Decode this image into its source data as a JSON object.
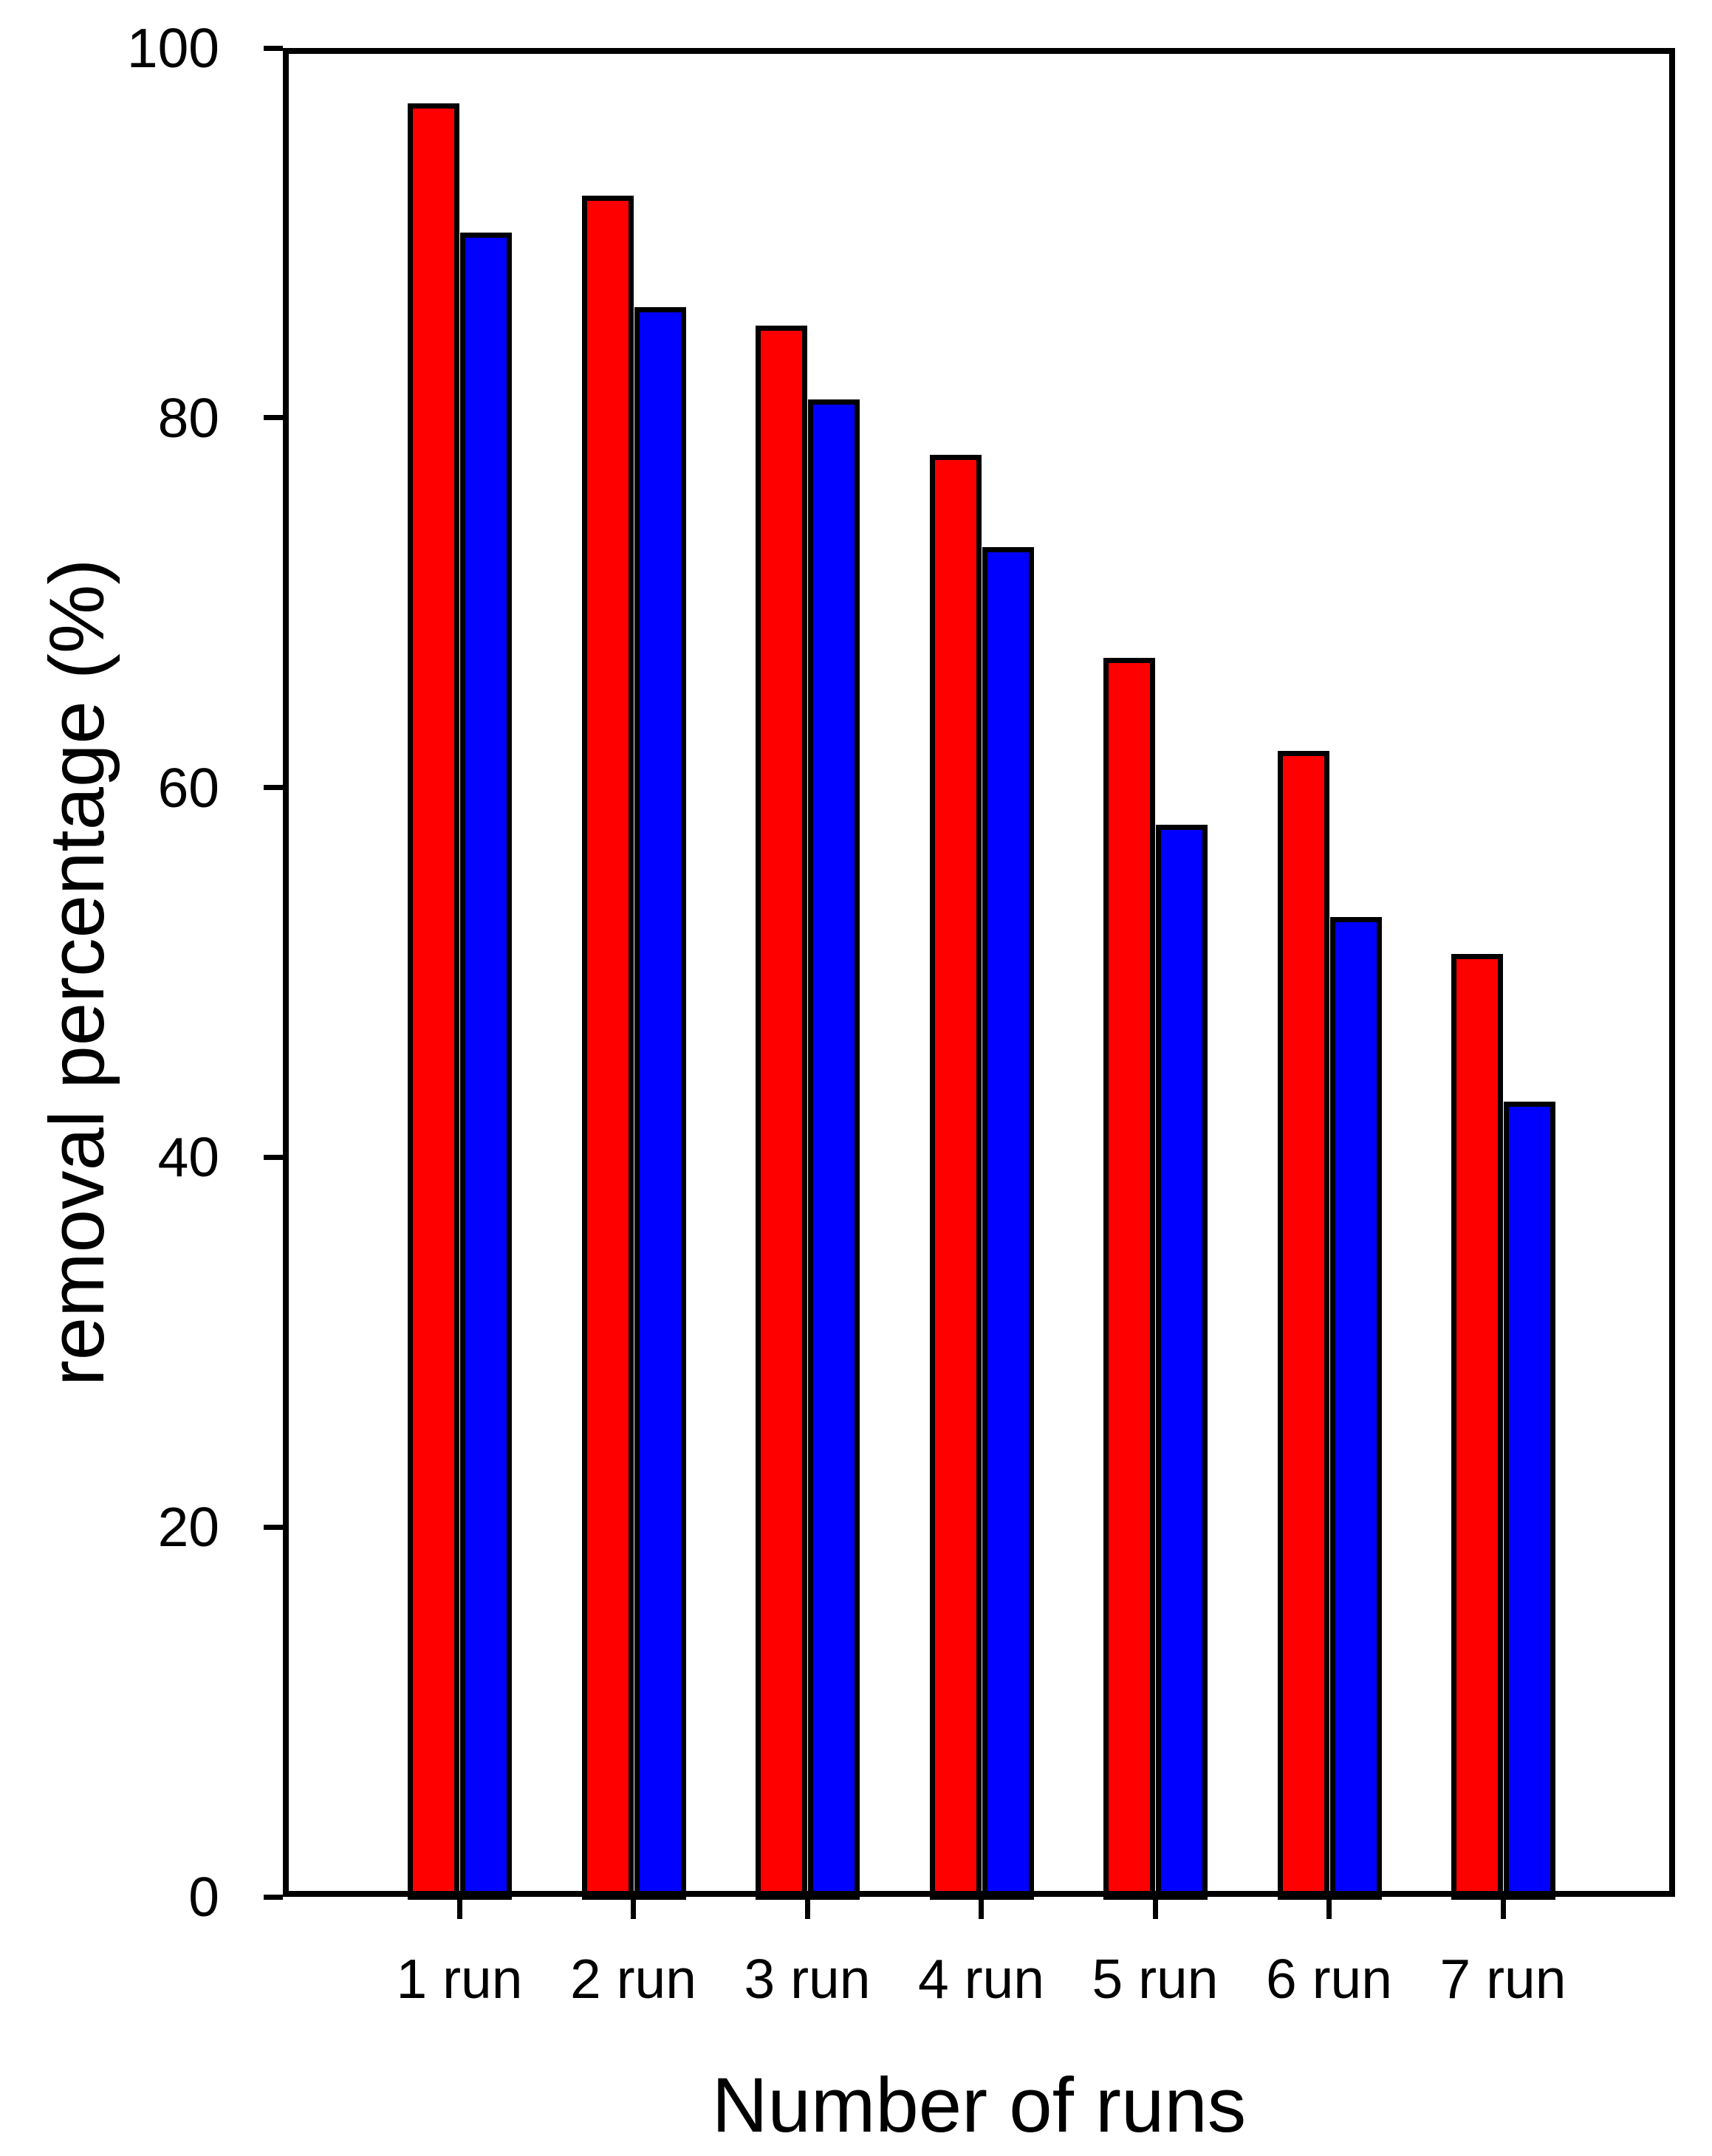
{
  "figure": {
    "background": "#FFFFFF",
    "axis_color": "#000000",
    "text_color": "#000000"
  },
  "chart_data": {
    "type": "bar",
    "title": "",
    "xlabel": "Number of runs",
    "ylabel": "removal percentage (%)",
    "categories": [
      "1 run",
      "2 run",
      "3 run",
      "4 run",
      "5 run",
      "6 run",
      "7 run"
    ],
    "series": [
      {
        "name": "red-series",
        "color": "#FF0000",
        "values": [
          97,
          92,
          85,
          78,
          67,
          62,
          51
        ]
      },
      {
        "name": "blue-series",
        "color": "#0000FF",
        "values": [
          90,
          86,
          81,
          73,
          58,
          53,
          43
        ]
      }
    ],
    "ylim": [
      0,
      100
    ],
    "yticks": [
      0,
      20,
      40,
      60,
      80,
      100
    ],
    "grid": false,
    "legend": null,
    "bar_border_color": "#000000"
  }
}
